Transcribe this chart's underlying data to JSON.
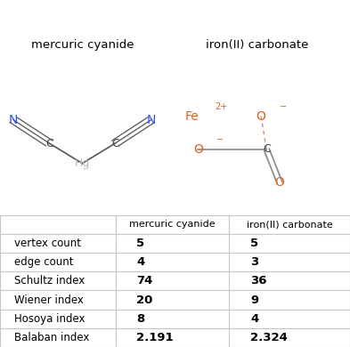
{
  "title1": "mercuric cyanide",
  "title2": "iron(II) carbonate",
  "rows": [
    [
      "vertex count",
      "5",
      "5"
    ],
    [
      "edge count",
      "4",
      "3"
    ],
    [
      "Schultz index",
      "74",
      "36"
    ],
    [
      "Wiener index",
      "20",
      "9"
    ],
    [
      "Hosoya index",
      "8",
      "4"
    ],
    [
      "Balaban index",
      "2.191",
      "2.324"
    ]
  ],
  "col_headers": [
    "",
    "mercuric cyanide",
    "iron(II) carbonate"
  ],
  "bg_color": "#ffffff",
  "border_color": "#c8c8c8",
  "text_color": "#000000",
  "mol1_N_color": "#3050f8",
  "mol1_C_color": "#404040",
  "mol1_Hg_color": "#b8b8b8",
  "mol2_Fe_color": "#e06020",
  "mol2_O_color": "#e06020",
  "mol2_C_color": "#404040",
  "mol2_bond_color": "#c89070",
  "fig_width": 3.93,
  "fig_height": 3.9
}
